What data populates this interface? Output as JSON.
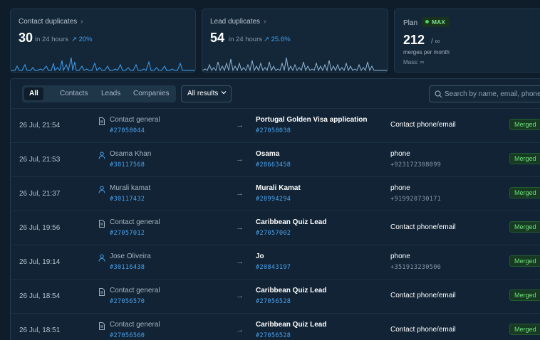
{
  "stats": {
    "contact": {
      "title": "Contact duplicates",
      "value": "30",
      "period": "in 24 hours",
      "trend": "↗ 20%"
    },
    "lead": {
      "title": "Lead duplicates",
      "value": "54",
      "period": "in 24 hours",
      "trend": "↗ 25.6%"
    },
    "plan": {
      "title": "Plan",
      "badge": "MAX",
      "value": "212",
      "limit": "/ ∞",
      "merges_label": "merges per month",
      "mass": "Mass: ∞"
    }
  },
  "colors": {
    "accent": "#3ea0f2",
    "merged": "#6fe07d",
    "background": "#0f1d2b"
  },
  "filters": {
    "tabs": [
      "All",
      "Contacts",
      "Leads",
      "Companies"
    ],
    "active_tab": "All",
    "results_select": "All results",
    "search_placeholder": "Search by name, email, phone or c"
  },
  "rows": [
    {
      "date": "26 Jul, 21:54",
      "src_icon": "document-icon",
      "src_name": "Contact general",
      "src_id": "#27058044",
      "dst_name": "Portugal Golden Visa application",
      "dst_id": "#27058038",
      "reason": "Contact phone/email",
      "reason_value": "",
      "status": "Merged"
    },
    {
      "date": "26 Jul, 21:53",
      "src_icon": "person-icon",
      "src_name": "Osama Khan",
      "src_id": "#30117568",
      "dst_name": "Osama",
      "dst_id": "#28663458",
      "reason": "phone",
      "reason_value": "+923172308099",
      "status": "Merged"
    },
    {
      "date": "26 Jul, 21:37",
      "src_icon": "person-icon",
      "src_name": "Murali kamat",
      "src_id": "#30117432",
      "dst_name": "Murali Kamat",
      "dst_id": "#28994294",
      "reason": "phone",
      "reason_value": "+919920730171",
      "status": "Merged"
    },
    {
      "date": "26 Jul, 19:56",
      "src_icon": "document-icon",
      "src_name": "Contact general",
      "src_id": "#27057012",
      "dst_name": "Caribbean Quiz Lead",
      "dst_id": "#27057002",
      "reason": "Contact phone/email",
      "reason_value": "",
      "status": "Merged"
    },
    {
      "date": "26 Jul, 19:14",
      "src_icon": "person-icon",
      "src_name": "Jose Oliveira",
      "src_id": "#30116438",
      "dst_name": "Jo",
      "dst_id": "#20843197",
      "reason": "phone",
      "reason_value": "+351913230506",
      "status": "Merged"
    },
    {
      "date": "26 Jul, 18:54",
      "src_icon": "document-icon",
      "src_name": "Contact general",
      "src_id": "#27056570",
      "dst_name": "Caribbean Quiz Lead",
      "dst_id": "#27056528",
      "reason": "Contact phone/email",
      "reason_value": "",
      "status": "Merged"
    },
    {
      "date": "26 Jul, 18:51",
      "src_icon": "document-icon",
      "src_name": "Contact general",
      "src_id": "#27056560",
      "dst_name": "Caribbean Quiz Lead",
      "dst_id": "#27056528",
      "reason": "Contact phone/email",
      "reason_value": "",
      "status": "Merged"
    }
  ]
}
